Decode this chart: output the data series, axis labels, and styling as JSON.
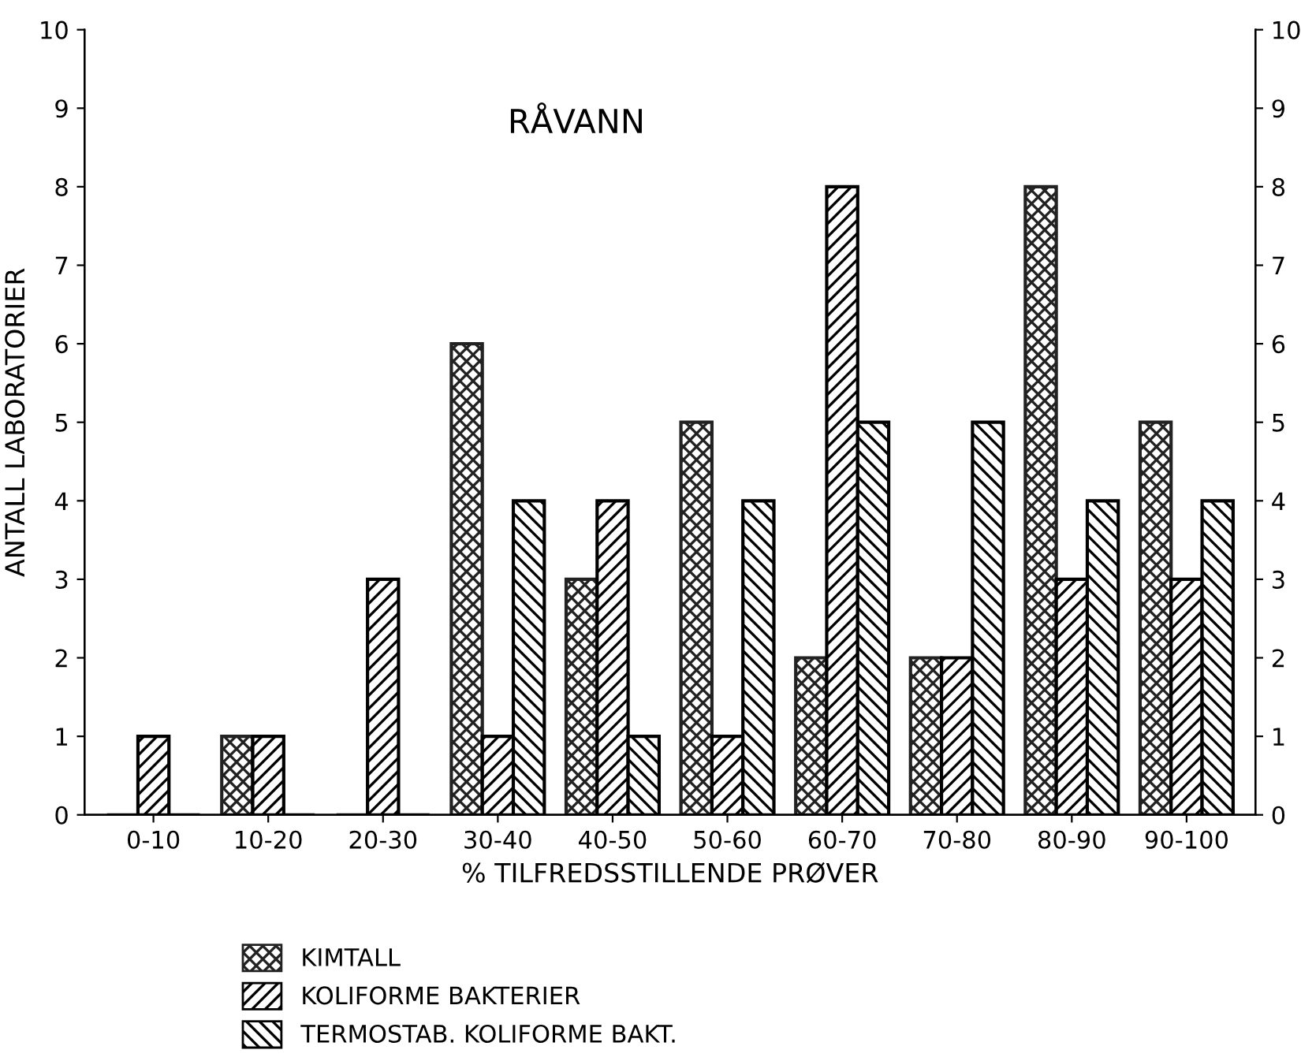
{
  "chart_data": {
    "type": "bar",
    "title": "RÅVANN",
    "xlabel": "% TILFREDSSTILLENDE PRØVER",
    "ylabel": "ANTALL LABORATORIER",
    "categories": [
      "0-10",
      "10-20",
      "20-30",
      "30-40",
      "40-50",
      "50-60",
      "60-70",
      "70-80",
      "80-90",
      "90-100"
    ],
    "series": [
      {
        "name": "KIMTALL",
        "color": "#222222",
        "values": [
          0,
          1,
          0,
          6,
          3,
          5,
          2,
          2,
          8,
          5
        ]
      },
      {
        "name": "KOLIFORME BAKTERIER",
        "color": "#000000",
        "values": [
          1,
          1,
          3,
          1,
          4,
          1,
          8,
          2,
          3,
          3
        ]
      },
      {
        "name": "TERMOSTAB. KOLIFORME BAKT.",
        "color": "#000000",
        "values": [
          0,
          0,
          0,
          4,
          1,
          4,
          5,
          5,
          4,
          4
        ]
      }
    ],
    "ylim": [
      0,
      10
    ],
    "yticks": [
      0,
      1,
      2,
      3,
      4,
      5,
      6,
      7,
      8,
      9,
      10
    ],
    "y2lim": [
      0,
      10
    ],
    "y2ticks": [
      0,
      1,
      2,
      3,
      4,
      5,
      6,
      7,
      8,
      9,
      10
    ],
    "grid": false,
    "legend": "bottom"
  }
}
